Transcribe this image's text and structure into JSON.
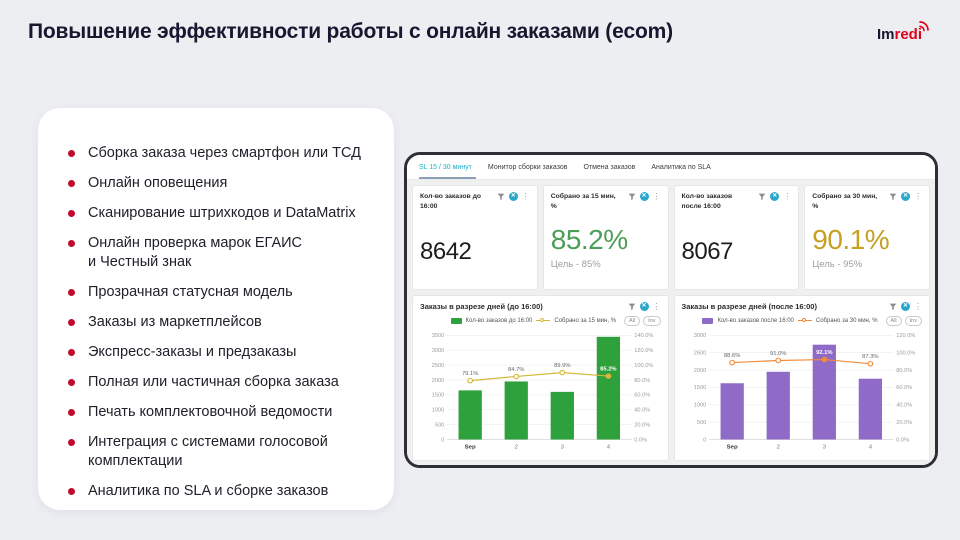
{
  "slide": {
    "title": "Повышение эффективности работы с онлайн заказами (ecom)",
    "logo": {
      "prefix": "Im",
      "suffix": "redi"
    }
  },
  "features": {
    "items": [
      "Сборка заказа через смартфон или ТСД",
      "Онлайн оповещения",
      "Сканирование штрихкодов и DataMatrix",
      "Онлайн проверка марок ЕГАИС\nи Честный знак",
      "Прозрачная статусная модель",
      "Заказы из маркетплейсов",
      "Экспресс-заказы и предзаказы",
      "Полная или частичная сборка заказа",
      "Печать комплектовочной ведомости",
      "Интеграция с системами голосовой\nкомплектации",
      "Аналитика по SLA и сборке заказов"
    ],
    "bullet_color": "#c00a2e"
  },
  "dashboard": {
    "tabs": [
      {
        "label": "SL 15 / 30 минут",
        "active": true
      },
      {
        "label": "Монитор сборки заказов",
        "active": false
      },
      {
        "label": "Отмена заказов",
        "active": false
      },
      {
        "label": "Аналитика по SLA",
        "active": false
      }
    ],
    "active_tab_color": "#1fb0c9",
    "kpi_cards": [
      {
        "title": "Кол-во заказов до 16:00",
        "value": "8642",
        "value_color": "#1d1d1f",
        "goal": ""
      },
      {
        "title": "Собрано за 15 мин, %",
        "value": "85.2%",
        "value_color": "#4d9e58",
        "goal": "Цель - 85%"
      },
      {
        "title": "Кол-во заказов после 16:00",
        "value": "8067",
        "value_color": "#1d1d1f",
        "goal": ""
      },
      {
        "title": "Собрано за 30 мин, %",
        "value": "90.1%",
        "value_color": "#c5a023",
        "goal": "Цель - 95%"
      }
    ]
  },
  "chart_data": [
    {
      "type": "bar",
      "title": "Заказы в разрезе дней (до 16:00)",
      "categories": [
        "Sep",
        "2",
        "3",
        "4"
      ],
      "series": [
        {
          "name": "Кол-во заказов до 16:00",
          "type": "bar",
          "color": "#2ea13c",
          "values": [
            1650,
            1950,
            1600,
            3450
          ],
          "axis": "left"
        },
        {
          "name": "Собрано за 15 мин, %",
          "type": "line",
          "color": "#d4b83c",
          "values": [
            79.1,
            84.7,
            89.9,
            85.2
          ],
          "labels": [
            "79.1%",
            "84.7%",
            "89.9%",
            "85.2%"
          ],
          "axis": "right"
        }
      ],
      "left_axis": {
        "min": 0,
        "max": 3500,
        "step": 500
      },
      "right_axis": {
        "min": 0,
        "max": 140,
        "step": 20
      },
      "highlight_index": 3,
      "toggles": [
        "All",
        "Inv"
      ],
      "grid": true,
      "legend_position": "top"
    },
    {
      "type": "bar",
      "title": "Заказы в разрезе дней (после 16:00)",
      "categories": [
        "Sep",
        "2",
        "3",
        "4"
      ],
      "series": [
        {
          "name": "Кол-во заказов после 16:00",
          "type": "bar",
          "color": "#8f6bc7",
          "values": [
            1620,
            1950,
            2730,
            1750
          ],
          "axis": "left"
        },
        {
          "name": "Собрано за 30 мин, %",
          "type": "line",
          "color": "#f08b3c",
          "values": [
            88.6,
            91.0,
            92.1,
            87.3
          ],
          "labels": [
            "88.6%",
            "91.0%",
            "92.1%",
            "87.3%"
          ],
          "axis": "right"
        }
      ],
      "left_axis": {
        "min": 0,
        "max": 3000,
        "step": 500
      },
      "right_axis": {
        "min": 0,
        "max": 120,
        "step": 20
      },
      "highlight_index": 2,
      "toggles": [
        "All",
        "Inv"
      ],
      "grid": true,
      "legend_position": "top"
    }
  ]
}
